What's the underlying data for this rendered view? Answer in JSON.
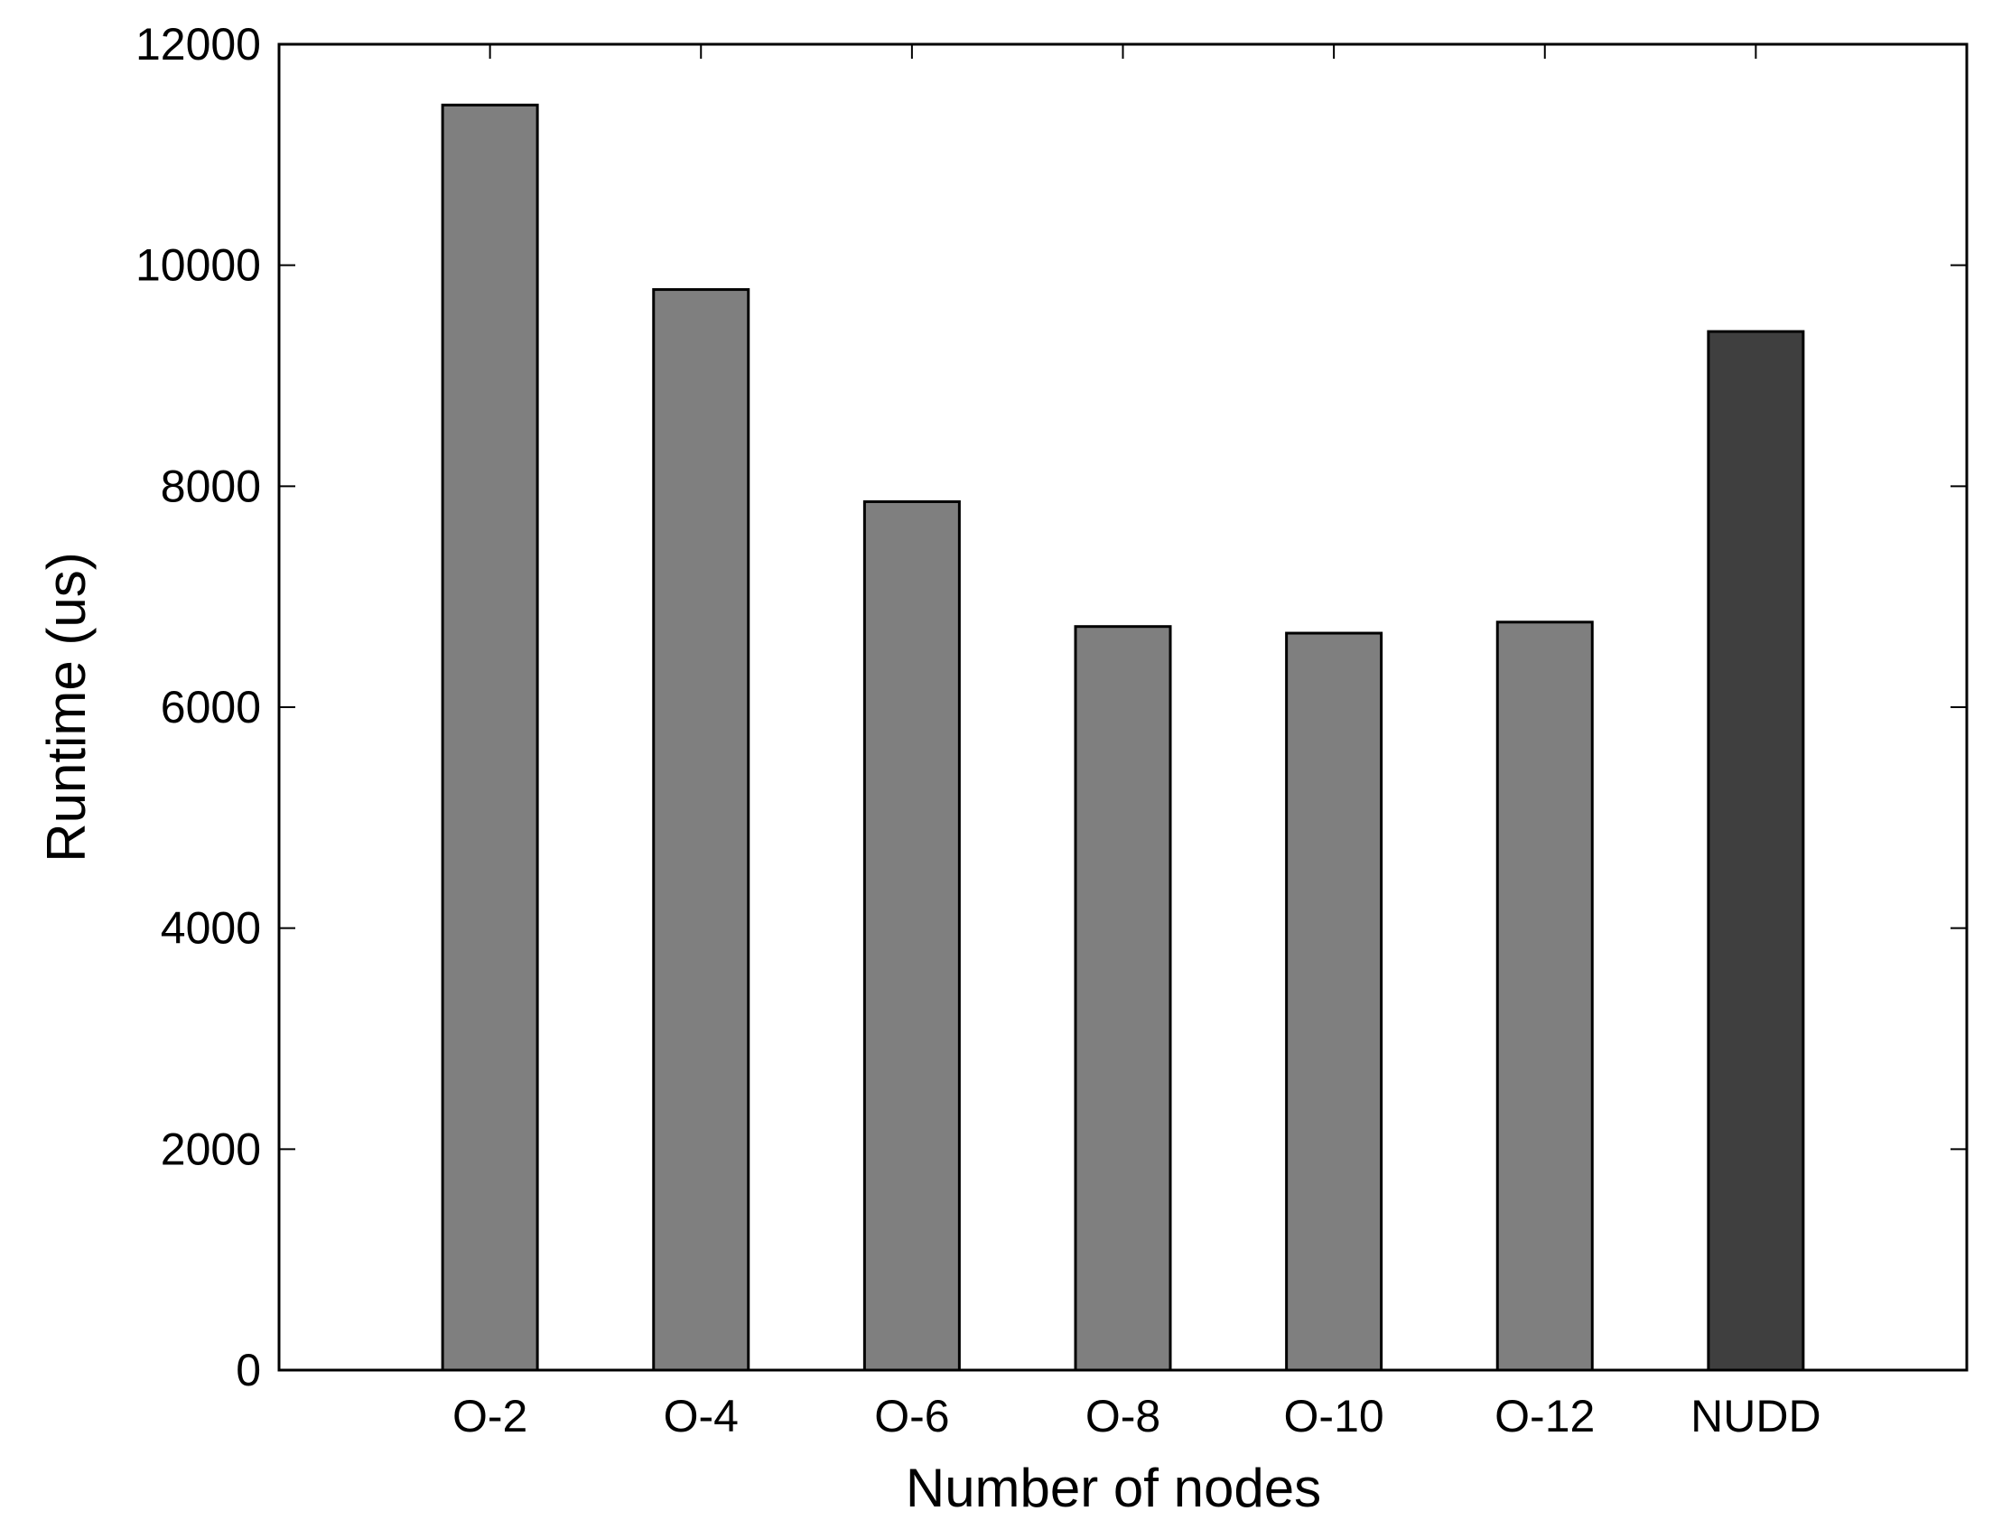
{
  "chart_data": {
    "type": "bar",
    "title": "",
    "xlabel": "Number of nodes",
    "ylabel": "Runtime (us)",
    "categories": [
      "O-2",
      "O-4",
      "O-6",
      "O-8",
      "O-10",
      "O-12",
      "NUDD"
    ],
    "series": [
      {
        "values": [
          11450,
          9780,
          7860,
          6730,
          6670,
          6770,
          9400
        ]
      }
    ],
    "bar_colors": [
      "#7f7f7f",
      "#7f7f7f",
      "#7f7f7f",
      "#7f7f7f",
      "#7f7f7f",
      "#7f7f7f",
      "#3f3f3f"
    ],
    "ylim": [
      0,
      12000
    ],
    "yticks": [
      0,
      2000,
      4000,
      6000,
      8000,
      10000,
      12000
    ],
    "ytick_labels": [
      "0",
      "2000",
      "4000",
      "6000",
      "8000",
      "10000",
      "12000"
    ],
    "grid": false,
    "legend": "none"
  }
}
